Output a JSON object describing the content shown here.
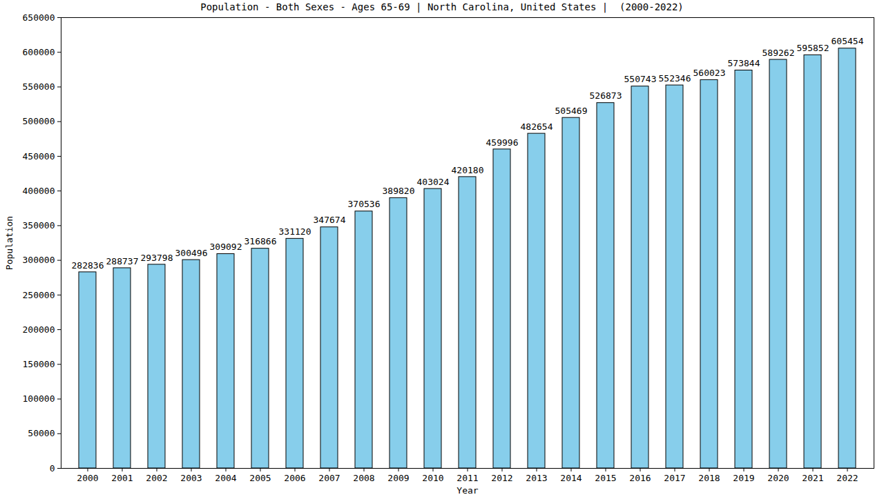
{
  "chart_data": {
    "type": "bar",
    "title": "Population - Both Sexes - Ages 65-69 | North Carolina, United States |  (2000-2022)",
    "x_label": "Year",
    "y_label": "Population",
    "categories": [
      "2000",
      "2001",
      "2002",
      "2003",
      "2004",
      "2005",
      "2006",
      "2007",
      "2008",
      "2009",
      "2010",
      "2011",
      "2012",
      "2013",
      "2014",
      "2015",
      "2016",
      "2017",
      "2018",
      "2019",
      "2020",
      "2021",
      "2022"
    ],
    "values": [
      282836,
      288737,
      293798,
      300496,
      309092,
      316866,
      331120,
      347674,
      370536,
      389820,
      403024,
      420180,
      459996,
      482654,
      505469,
      526873,
      550743,
      552346,
      560023,
      573844,
      589262,
      595852,
      605454
    ],
    "color": "#87ceeb",
    "ylim": [
      0,
      650000
    ],
    "yticks": [
      0,
      50000,
      100000,
      150000,
      200000,
      250000,
      300000,
      350000,
      400000,
      450000,
      500000,
      550000,
      600000,
      650000
    ],
    "grid": false,
    "data_labels": true
  }
}
